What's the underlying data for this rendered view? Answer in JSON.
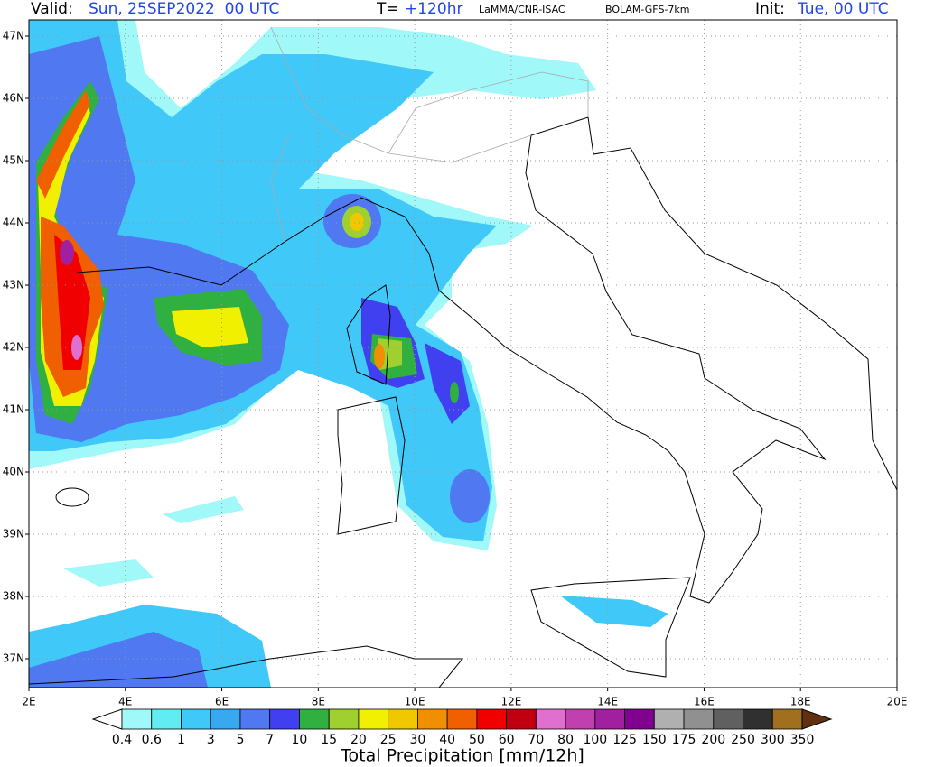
{
  "header": {
    "valid_label": "Valid:",
    "valid_time": "Sun, 25SEP2022  00 UTC",
    "lead_label": "T=",
    "lead_time": "+120hr",
    "institution": "LaMMA/CNR-ISAC",
    "model": "BOLAM-GFS-7km",
    "init_label": "Init:",
    "init_time": "Tue, 00 UTC"
  },
  "map": {
    "lat_labels": [
      "47N",
      "46N",
      "45N",
      "44N",
      "43N",
      "42N",
      "41N",
      "40N",
      "39N",
      "38N",
      "37N"
    ],
    "lon_labels": [
      "2E",
      "4E",
      "6E",
      "8E",
      "10E",
      "12E",
      "14E",
      "16E",
      "18E",
      "20E"
    ]
  },
  "colorbar": {
    "title": "Total Precipitation [mm/12h]",
    "levels": [
      0.4,
      0.6,
      1,
      3,
      5,
      7,
      10,
      15,
      20,
      25,
      30,
      40,
      50,
      60,
      70,
      80,
      100,
      125,
      150,
      175,
      200,
      250,
      300,
      350
    ],
    "colors": [
      "#ffffff",
      "#a0f8f8",
      "#60ecf0",
      "#40c8f8",
      "#38a8f0",
      "#5078f0",
      "#4040f0",
      "#30b040",
      "#a0d030",
      "#f0f000",
      "#f0c800",
      "#f09000",
      "#f06000",
      "#f00000",
      "#c00010",
      "#e070d0",
      "#c040b0",
      "#a020a0",
      "#800090",
      "#b0b0b0",
      "#909090",
      "#606060",
      "#303030",
      "#a07020",
      "#603010"
    ]
  }
}
